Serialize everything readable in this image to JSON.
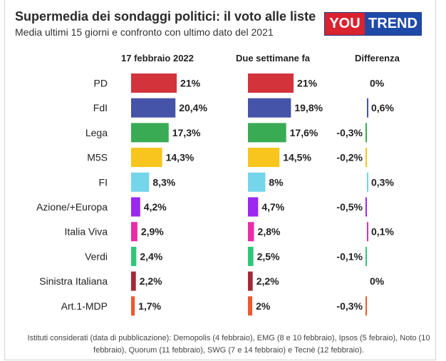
{
  "header": {
    "title": "Supermedia dei sondaggi politici: il voto alle liste",
    "subtitle": "Media ultimi 15 giorni e confronto con ultimo dato del 2021"
  },
  "logo": {
    "part1": "YOU",
    "part2": "TREND"
  },
  "columns": {
    "current": "17 febbraio 2022",
    "previous": "Due settimane fa",
    "difference": "Differenza"
  },
  "chart_data": {
    "type": "bar",
    "categories": [
      "PD",
      "FdI",
      "Lega",
      "M5S",
      "FI",
      "Azione/+Europa",
      "Italia Viva",
      "Verdi",
      "Sinistra Italiana",
      "Art.1-MDP"
    ],
    "colors": [
      "#d3333b",
      "#4553a8",
      "#3aab55",
      "#f7c51d",
      "#75d5ea",
      "#9b27f0",
      "#ea2da6",
      "#30c77a",
      "#a52839",
      "#ec5a2e"
    ],
    "series": [
      {
        "name": "17 febbraio 2022",
        "values": [
          21,
          20.4,
          17.3,
          14.3,
          8.3,
          4.2,
          2.9,
          2.4,
          2.2,
          1.7
        ],
        "labels": [
          "21%",
          "20,4%",
          "17,3%",
          "14,3%",
          "8,3%",
          "4,2%",
          "2,9%",
          "2,4%",
          "2,2%",
          "1,7%"
        ]
      },
      {
        "name": "Due settimane fa",
        "values": [
          21,
          19.8,
          17.6,
          14.5,
          8,
          4.7,
          2.8,
          2.5,
          2.2,
          2
        ],
        "labels": [
          "21%",
          "19,8%",
          "17,6%",
          "14,5%",
          "8%",
          "4,7%",
          "2,8%",
          "2,5%",
          "2,2%",
          "2%"
        ]
      },
      {
        "name": "Differenza",
        "values": [
          0,
          0.6,
          -0.3,
          -0.2,
          0.3,
          -0.5,
          0.1,
          -0.1,
          0,
          -0.3
        ],
        "labels": [
          "0%",
          "0,6%",
          "-0,3%",
          "-0,2%",
          "0,3%",
          "-0,5%",
          "0,1%",
          "-0,1%",
          "0%",
          "-0,3%"
        ]
      }
    ]
  },
  "footnote": "Istituti considerati (data di pubblicazione): Demopolis (4 febbraio), EMG (8 e 10 febbraio), Ipsos (5 febraio), Noto (10 febbraio), Quorum (11 febbraio), SWG (7 e 14 febbraio) e Tecnè (12 febbraio)."
}
